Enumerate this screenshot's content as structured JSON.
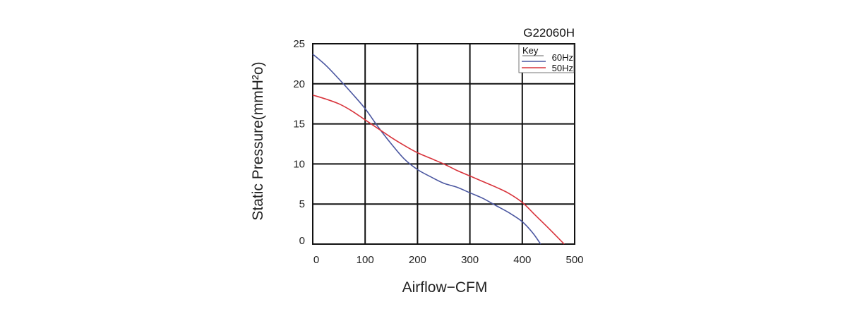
{
  "chart_data": {
    "type": "line",
    "title": "G22060H",
    "xlabel": "Airflow−CFM",
    "ylabel": "Static Pressure(mmH²o)",
    "xlim": [
      0,
      500
    ],
    "ylim": [
      0,
      25
    ],
    "x_ticks": [
      0,
      100,
      200,
      300,
      400,
      500
    ],
    "y_ticks": [
      0,
      5,
      10,
      15,
      20,
      25
    ],
    "grid": true,
    "legend": {
      "title": "Key",
      "placement": "top-right"
    },
    "series": [
      {
        "name": "60Hz",
        "color": "#4a56a0",
        "x": [
          0,
          25,
          50,
          75,
          100,
          125,
          150,
          175,
          200,
          225,
          250,
          275,
          300,
          325,
          350,
          375,
          400,
          420,
          435
        ],
        "y": [
          23.7,
          22.3,
          20.6,
          18.8,
          16.9,
          14.6,
          12.5,
          10.6,
          9.3,
          8.4,
          7.6,
          7.1,
          6.4,
          5.7,
          4.8,
          3.9,
          2.8,
          1.4,
          0
        ]
      },
      {
        "name": "50Hz",
        "color": "#d8333b",
        "x": [
          0,
          25,
          50,
          75,
          100,
          125,
          150,
          175,
          200,
          225,
          250,
          275,
          300,
          325,
          350,
          375,
          400,
          425,
          450,
          480
        ],
        "y": [
          18.6,
          18.1,
          17.5,
          16.6,
          15.5,
          14.4,
          13.3,
          12.3,
          11.4,
          10.7,
          10.0,
          9.2,
          8.5,
          7.8,
          7.1,
          6.3,
          5.2,
          3.6,
          2.0,
          0
        ]
      }
    ]
  }
}
